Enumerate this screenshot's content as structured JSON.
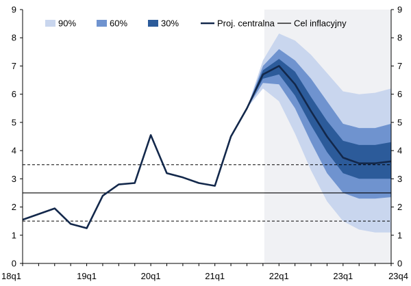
{
  "chart_data": {
    "type": "fan",
    "title": "",
    "xlabel": "",
    "ylabel": "",
    "ylim": [
      0,
      9
    ],
    "y_ticks": [
      "0",
      "1",
      "2",
      "3",
      "4",
      "5",
      "6",
      "7",
      "8",
      "9"
    ],
    "x_axis": {
      "start_quarter": "18q1",
      "end_quarter": "23q4",
      "tick_labels": [
        "18q1",
        "19q1",
        "20q1",
        "21q1",
        "22q1",
        "23q1",
        "23q4"
      ]
    },
    "legend": {
      "placement": "top",
      "entries": [
        "90%",
        "60%",
        "30%",
        "Proj. centralna",
        "Cel inflacyjny"
      ]
    },
    "projection_start": "21q4",
    "target_line": 2.5,
    "tolerance_band": [
      1.5,
      3.5
    ],
    "series": [
      {
        "name": "Proj. centralna",
        "quarters": [
          "18q1",
          "18q2",
          "18q3",
          "18q4",
          "19q1",
          "19q2",
          "19q3",
          "19q4",
          "20q1",
          "20q2",
          "20q3",
          "20q4",
          "21q1",
          "21q2",
          "21q3",
          "21q4",
          "22q1",
          "22q2",
          "22q3",
          "22q4",
          "23q1",
          "23q2",
          "23q3",
          "23q4"
        ],
        "values": [
          1.55,
          1.75,
          1.95,
          1.4,
          1.25,
          2.4,
          2.8,
          2.85,
          4.55,
          3.2,
          3.05,
          2.85,
          2.75,
          4.5,
          5.5,
          6.7,
          7.0,
          6.35,
          5.4,
          4.5,
          3.75,
          3.55,
          3.55,
          3.62
        ]
      }
    ],
    "fan_bands": {
      "quarters": [
        "21q3",
        "21q4",
        "22q1",
        "22q2",
        "22q3",
        "22q4",
        "23q1",
        "23q2",
        "23q3",
        "23q4"
      ],
      "p90_low": [
        5.5,
        6.2,
        5.75,
        4.6,
        3.3,
        2.2,
        1.5,
        1.2,
        1.1,
        1.1
      ],
      "p60_low": [
        5.5,
        6.4,
        6.35,
        5.5,
        4.3,
        3.2,
        2.5,
        2.3,
        2.3,
        2.35
      ],
      "p30_low": [
        5.5,
        6.55,
        6.7,
        5.95,
        4.9,
        3.95,
        3.2,
        3.0,
        3.0,
        3.0
      ],
      "p30_high": [
        5.5,
        6.85,
        7.25,
        6.8,
        5.9,
        5.05,
        4.35,
        4.2,
        4.2,
        4.3
      ],
      "p60_high": [
        5.5,
        7.0,
        7.6,
        7.2,
        6.55,
        5.75,
        4.95,
        4.8,
        4.8,
        4.95
      ],
      "p90_high": [
        5.5,
        7.2,
        8.15,
        7.9,
        7.4,
        6.75,
        6.1,
        6.0,
        6.05,
        6.2
      ]
    },
    "colors": {
      "p90": "#c9d6ee",
      "p60": "#6f93cf",
      "p30": "#2c5b9a",
      "central": "#13284b",
      "target": "#000000",
      "projection_bg": "#f0f1f4",
      "grid": "#000000"
    }
  }
}
